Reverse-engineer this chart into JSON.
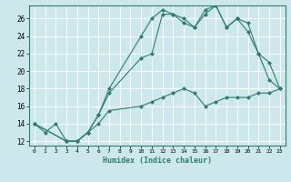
{
  "xlabel": "Humidex (Indice chaleur)",
  "bg_color": "#cce8ec",
  "grid_color": "#ffffff",
  "line_color": "#2e7d6e",
  "xlim": [
    -0.5,
    23.5
  ],
  "ylim": [
    11.5,
    27.5
  ],
  "xticks": [
    0,
    1,
    2,
    3,
    4,
    5,
    6,
    7,
    8,
    9,
    10,
    11,
    12,
    13,
    14,
    15,
    16,
    17,
    18,
    19,
    20,
    21,
    22,
    23
  ],
  "yticks": [
    12,
    14,
    16,
    18,
    20,
    22,
    24,
    26
  ],
  "line1_x": [
    0,
    1,
    2,
    3,
    4,
    5,
    6,
    7,
    10,
    11,
    12,
    13,
    14,
    15,
    16,
    17,
    18,
    19,
    20,
    21,
    22,
    23
  ],
  "line1_y": [
    14,
    13,
    14,
    12,
    12,
    13,
    15,
    18,
    24,
    26,
    27,
    26.5,
    26,
    25,
    27,
    27.5,
    25,
    26,
    25.5,
    22,
    19,
    18
  ],
  "line2_x": [
    0,
    3,
    4,
    5,
    6,
    7,
    10,
    11,
    12,
    13,
    14,
    15,
    16,
    17,
    18,
    19,
    20,
    21,
    22,
    23
  ],
  "line2_y": [
    14,
    12,
    12,
    13,
    15,
    17.5,
    21.5,
    22,
    26.5,
    26.5,
    25.5,
    25,
    26.5,
    27.5,
    25,
    26,
    24.5,
    22,
    21,
    18
  ],
  "line3_x": [
    0,
    3,
    4,
    5,
    6,
    7,
    10,
    11,
    12,
    13,
    14,
    15,
    16,
    17,
    18,
    19,
    20,
    21,
    22,
    23
  ],
  "line3_y": [
    14,
    12,
    12,
    13,
    14,
    15.5,
    16,
    16.5,
    17,
    17.5,
    18,
    17.5,
    16,
    16.5,
    17,
    17,
    17,
    17.5,
    17.5,
    18
  ]
}
